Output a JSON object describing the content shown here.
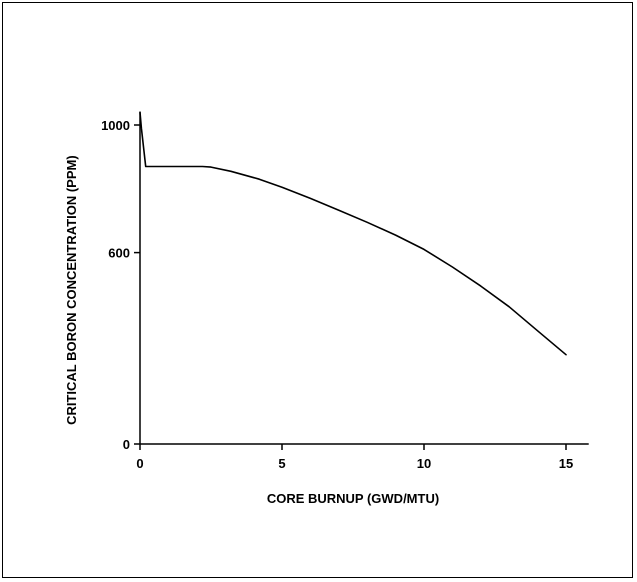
{
  "chart_data": {
    "type": "line",
    "title": "",
    "xlabel": "CORE BURNUP (GWD/MTU)",
    "ylabel": "CRITICAL BORON CONCENTRATION (PPM)",
    "xlim": [
      0,
      15.8
    ],
    "ylim": [
      0,
      1040
    ],
    "x_ticks": [
      0,
      5,
      10,
      15
    ],
    "x_tick_labels": [
      "0",
      "5",
      "10",
      "15"
    ],
    "y_ticks": [
      0,
      600,
      1000
    ],
    "y_tick_labels": [
      "0",
      "600",
      "1000"
    ],
    "grid": false,
    "legend": "none",
    "line_color": "#000000",
    "series": [
      {
        "x": [
          0,
          0.05,
          0.2,
          2.2,
          2.5,
          3.2,
          4.2,
          5.0,
          6.0,
          7.0,
          8.0,
          9.0,
          10.0,
          11.0,
          12.0,
          13.0,
          14.0,
          15.0
        ],
        "y": [
          1040,
          990,
          870,
          870,
          868,
          855,
          830,
          805,
          770,
          733,
          695,
          655,
          610,
          555,
          495,
          430,
          355,
          280
        ]
      }
    ]
  }
}
